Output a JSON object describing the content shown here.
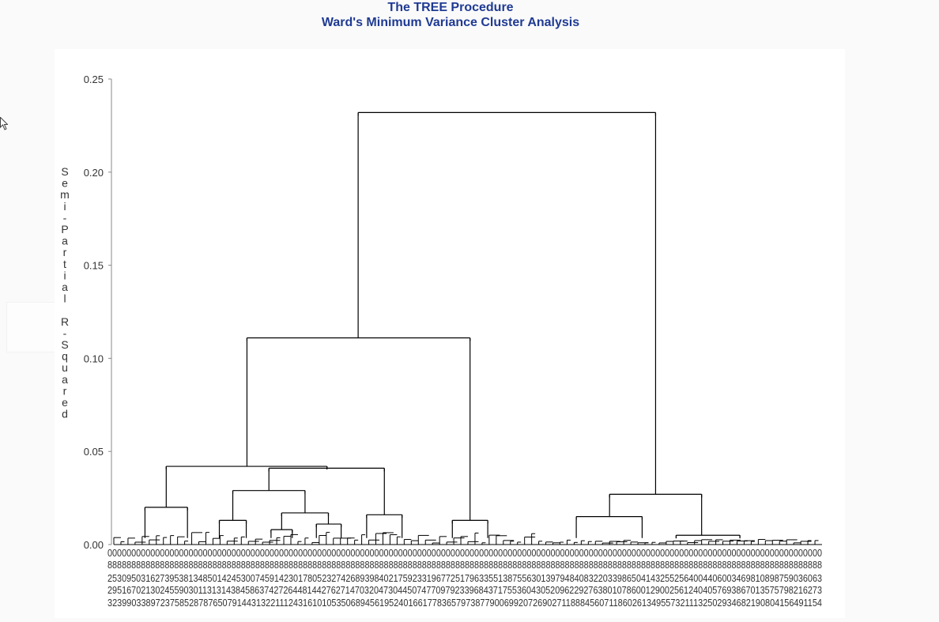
{
  "header": {
    "title": "The TREE Procedure",
    "subtitle": "Ward's Minimum Variance Cluster Analysis"
  },
  "colors": {
    "title": "#1f3a93",
    "lines": "#000000",
    "axis_text": "#333333",
    "panel": "#ffffff",
    "page": "#fafafa"
  },
  "chart_data": {
    "type": "dendrogram",
    "title": "",
    "ylabel": "Semi-Partial R-Squared",
    "xlabel": "",
    "ylim": [
      0,
      0.25
    ],
    "y_ticks": [
      0,
      0.05,
      0.1,
      0.15,
      0.2,
      0.25
    ],
    "y_tick_labels": [
      "0.00",
      "0.05",
      "0.10",
      "0.15",
      "0.20",
      "0.25"
    ],
    "leaf_count": 200,
    "leaf_labels_legible": false,
    "merges": [
      {
        "name": "root",
        "height": 0.232,
        "left_pos": 0.345,
        "right_pos": 0.765
      },
      {
        "name": "left-main",
        "height": 0.111,
        "left_pos": 0.188,
        "right_pos": 0.503
      },
      {
        "name": "left-a",
        "height": 0.042,
        "left_pos": 0.074,
        "right_pos": 0.301
      },
      {
        "name": "left-a-1",
        "height": 0.02,
        "left_pos": 0.044,
        "right_pos": 0.104
      },
      {
        "name": "left-a-2",
        "height": 0.041,
        "left_pos": 0.219,
        "right_pos": 0.382
      },
      {
        "name": "left-a-2-1",
        "height": 0.029,
        "left_pos": 0.168,
        "right_pos": 0.27
      },
      {
        "name": "left-a-2-1-a",
        "height": 0.013,
        "left_pos": 0.149,
        "right_pos": 0.187
      },
      {
        "name": "left-a-2-1-b",
        "height": 0.017,
        "left_pos": 0.237,
        "right_pos": 0.303
      },
      {
        "name": "left-a-2-1-b-1",
        "height": 0.008,
        "left_pos": 0.222,
        "right_pos": 0.252
      },
      {
        "name": "left-a-2-1-b-2",
        "height": 0.011,
        "left_pos": 0.286,
        "right_pos": 0.321
      },
      {
        "name": "left-a-2-2",
        "height": 0.016,
        "left_pos": 0.357,
        "right_pos": 0.407
      },
      {
        "name": "left-b",
        "height": 0.013,
        "left_pos": 0.478,
        "right_pos": 0.528
      },
      {
        "name": "right-main",
        "height": 0.027,
        "left_pos": 0.7,
        "right_pos": 0.83
      },
      {
        "name": "right-a",
        "height": 0.015,
        "left_pos": 0.653,
        "right_pos": 0.746
      },
      {
        "name": "right-b",
        "height": 0.005,
        "left_pos": 0.794,
        "right_pos": 0.884
      }
    ]
  }
}
